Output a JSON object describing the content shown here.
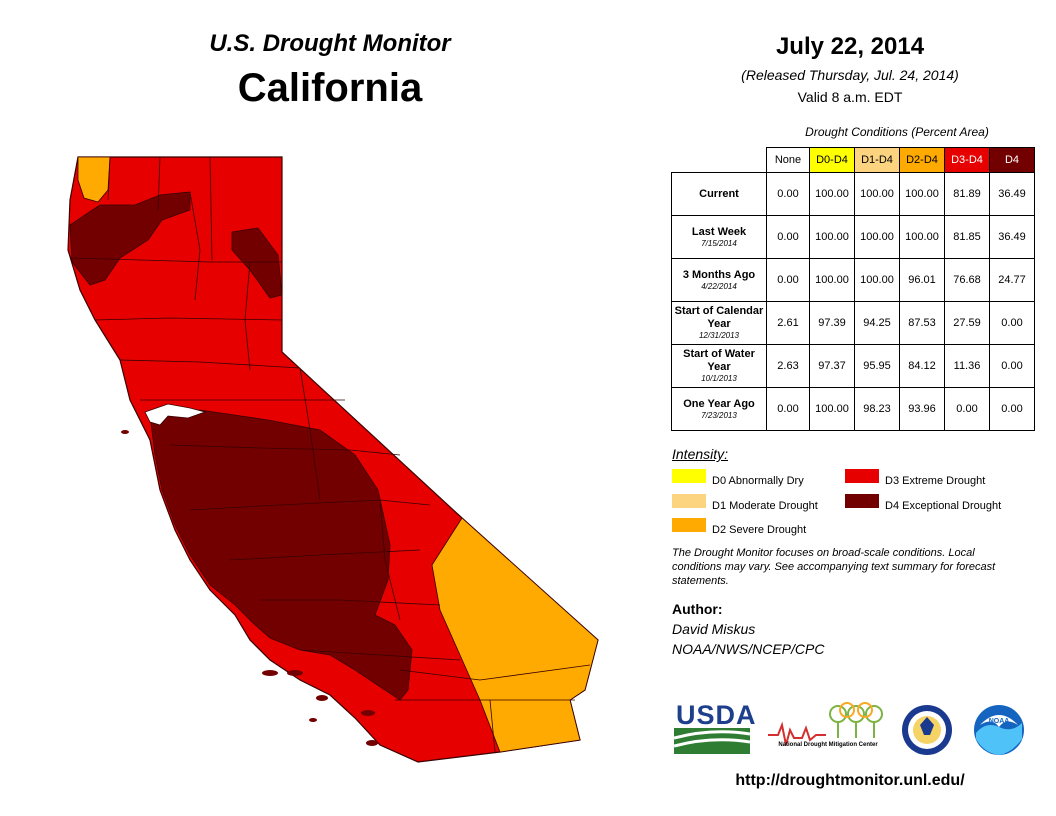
{
  "header": {
    "monitor_title": "U.S. Drought Monitor",
    "state": "California",
    "date": "July 22, 2014",
    "released": "(Released Thursday, Jul. 24, 2014)",
    "valid": "Valid 8 a.m. EDT"
  },
  "table": {
    "caption": "Drought Conditions (Percent Area)",
    "columns": [
      "None",
      "D0-D4",
      "D1-D4",
      "D2-D4",
      "D3-D4",
      "D4"
    ],
    "column_colors": [
      "#ffffff",
      "#ffff00",
      "#fcd37f",
      "#ffaa00",
      "#e60000",
      "#730000"
    ],
    "rows": [
      {
        "label": "Current",
        "sub": "",
        "values": [
          "0.00",
          "100.00",
          "100.00",
          "100.00",
          "81.89",
          "36.49"
        ]
      },
      {
        "label": "Last Week",
        "sub": "7/15/2014",
        "values": [
          "0.00",
          "100.00",
          "100.00",
          "100.00",
          "81.85",
          "36.49"
        ]
      },
      {
        "label": "3 Months Ago",
        "sub": "4/22/2014",
        "values": [
          "0.00",
          "100.00",
          "100.00",
          "96.01",
          "76.68",
          "24.77"
        ]
      },
      {
        "label": "Start of Calendar Year",
        "sub": "12/31/2013",
        "values": [
          "2.61",
          "97.39",
          "94.25",
          "87.53",
          "27.59",
          "0.00"
        ]
      },
      {
        "label": "Start of Water Year",
        "sub": "10/1/2013",
        "values": [
          "2.63",
          "97.37",
          "95.95",
          "84.12",
          "11.36",
          "0.00"
        ]
      },
      {
        "label": "One Year Ago",
        "sub": "7/23/2013",
        "values": [
          "0.00",
          "100.00",
          "98.23",
          "93.96",
          "0.00",
          "0.00"
        ]
      }
    ]
  },
  "legend": {
    "title": "Intensity:",
    "items": [
      {
        "label": "D0 Abnormally Dry",
        "color": "#ffff00"
      },
      {
        "label": "D1 Moderate Drought",
        "color": "#fcd37f"
      },
      {
        "label": "D2 Severe Drought",
        "color": "#ffaa00"
      },
      {
        "label": "D3 Extreme Drought",
        "color": "#e60000"
      },
      {
        "label": "D4 Exceptional Drought",
        "color": "#730000"
      }
    ]
  },
  "note": "The Drought Monitor focuses on broad-scale conditions. Local conditions may vary. See accompanying text summary for forecast statements.",
  "author": {
    "label": "Author:",
    "name": "David Miskus",
    "org": "NOAA/NWS/NCEP/CPC"
  },
  "logos": {
    "usda": "USDA",
    "ndmc": "National Drought Mitigation Center",
    "noaa": "NOAA"
  },
  "map_colors": {
    "d2": "#ffaa00",
    "d3": "#e60000",
    "d4": "#730000",
    "county_lines": "#3a0000"
  },
  "url": "http://droughtmonitor.unl.edu/"
}
